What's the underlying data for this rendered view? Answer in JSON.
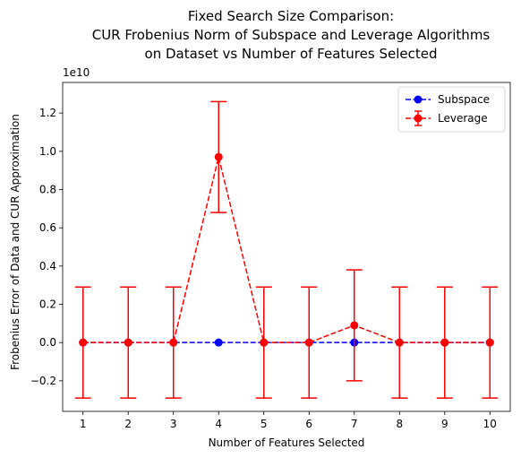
{
  "chart_data": {
    "type": "line",
    "title_lines": [
      "Fixed Search Size Comparison:",
      "CUR Frobenius Norm of Subspace and Leverage Algorithms",
      "on Dataset vs Number of Features Selected"
    ],
    "xlabel": "Number of Features Selected",
    "ylabel": "Frobenius Error of Data and CUR Approximation",
    "y_offset_label": "1e10",
    "x": [
      1,
      2,
      3,
      4,
      5,
      6,
      7,
      8,
      9,
      10
    ],
    "xlim": [
      0.55,
      10.45
    ],
    "ylim": [
      -0.36,
      1.36
    ],
    "y_ticks": [
      -0.2,
      0.0,
      0.2,
      0.4,
      0.6,
      0.8,
      1.0,
      1.2
    ],
    "y_tick_labels": [
      "−0.2",
      "0.0",
      "0.2",
      "0.4",
      "0.6",
      "0.8",
      "1.0",
      "1.2"
    ],
    "grid": false,
    "legend_position": "top-right",
    "series": [
      {
        "name": "Subspace",
        "color": "#0000ff",
        "linestyle": "dashed",
        "marker": "circle",
        "values": [
          0,
          0,
          0,
          0,
          0,
          0,
          0,
          0,
          0,
          0
        ]
      },
      {
        "name": "Leverage",
        "color": "#ff0000",
        "linestyle": "dashed",
        "marker": "circle",
        "values": [
          0,
          0,
          0,
          0.97,
          0,
          0,
          0.09,
          0,
          0,
          0
        ],
        "error": [
          0.29,
          0.29,
          0.29,
          0.29,
          0.29,
          0.29,
          0.29,
          0.29,
          0.29,
          0.29
        ]
      }
    ]
  }
}
